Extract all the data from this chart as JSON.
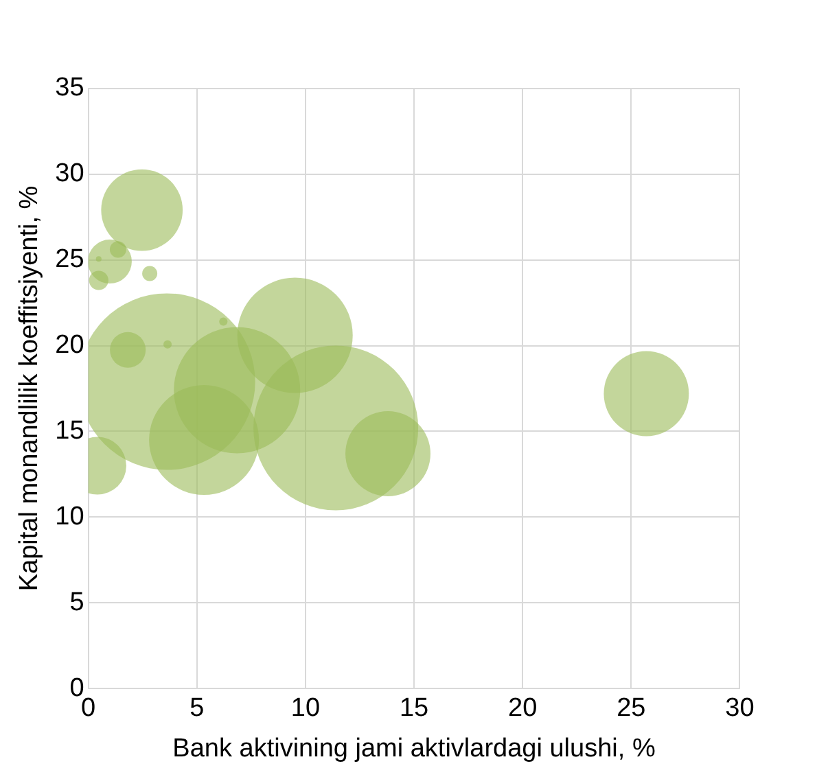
{
  "chart_data": {
    "type": "bubble",
    "xlabel": "Bank aktivining jami aktivlardagi ulushi, %",
    "ylabel": "Kapital monandlilik koeffitsiyenti, %",
    "x": [
      2.47,
      0.99,
      1.37,
      0.48,
      0.48,
      2.83,
      3.62,
      1.82,
      3.65,
      6.22,
      9.52,
      6.85,
      5.33,
      11.4,
      13.8,
      0.42,
      25.7
    ],
    "values": [
      27.9,
      24.9,
      25.6,
      25.05,
      23.8,
      24.2,
      17.9,
      19.75,
      20.07,
      21.4,
      20.6,
      17.4,
      14.5,
      15.2,
      13.7,
      13.0,
      17.2
    ],
    "sizes": [
      0.213,
      0.062,
      0.0087,
      0.001,
      0.012,
      0.0073,
      1,
      0.041,
      0.0022,
      0.0022,
      0.427,
      0.512,
      0.387,
      0.871,
      0.232,
      0.107,
      0.232
    ],
    "color": "#9bbb59",
    "xlim": [
      0,
      30
    ],
    "xticks": [
      0,
      5,
      10,
      15,
      20,
      25,
      30
    ],
    "ylim": [
      0,
      35
    ],
    "yticks": [
      0,
      5,
      10,
      15,
      20,
      25,
      30,
      35
    ],
    "grid": true,
    "legend": false
  }
}
